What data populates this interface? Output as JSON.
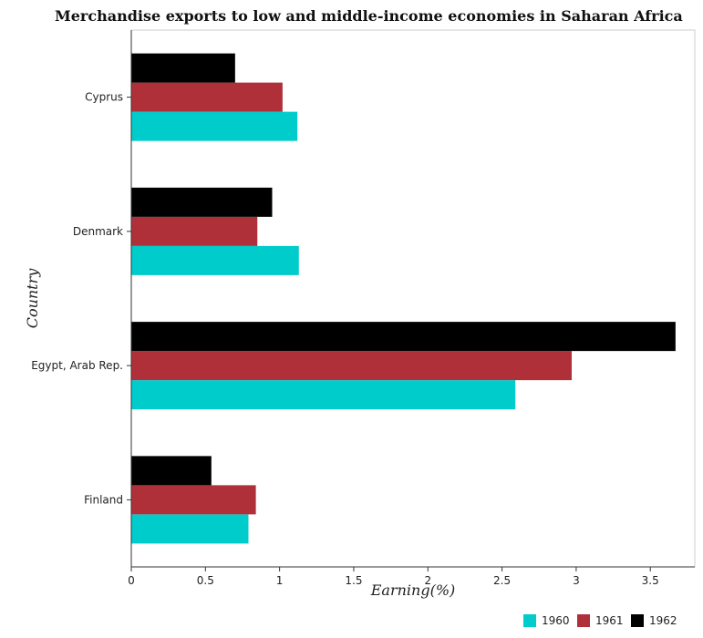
{
  "chart_data": {
    "type": "bar",
    "orientation": "horizontal",
    "title": "Merchandise exports to low and middle-income economies in Saharan Africa",
    "xlabel": "Earning(%)",
    "ylabel": "Country",
    "categories": [
      "Cyprus",
      "Denmark",
      "Egypt, Arab Rep.",
      "Finland"
    ],
    "series": [
      {
        "name": "1960",
        "color": "#00cccc",
        "values": [
          1.12,
          1.13,
          2.59,
          0.79
        ]
      },
      {
        "name": "1961",
        "color": "#b0303a",
        "values": [
          1.02,
          0.85,
          2.97,
          0.84
        ]
      },
      {
        "name": "1962",
        "color": "#000000",
        "values": [
          0.7,
          0.95,
          3.67,
          0.54
        ]
      }
    ],
    "xticks": [
      0,
      0.5,
      1,
      1.5,
      2,
      2.5,
      3,
      3.5
    ],
    "xtick_labels": [
      "0",
      "0.5",
      "1",
      "1.5",
      "2",
      "2.5",
      "3",
      "3.5"
    ],
    "xlim": [
      0,
      3.8
    ],
    "grid": false,
    "legend_position": "bottom-right"
  }
}
